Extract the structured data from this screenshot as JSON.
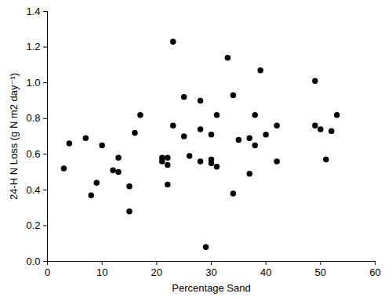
{
  "chart_data": {
    "type": "scatter",
    "xlabel": "Percentage Sand",
    "ylabel": "24-H N Loss (g N m2 day⁻¹)",
    "color": "#000000",
    "marker": "circle",
    "x": [
      3,
      4,
      7,
      8,
      9,
      10,
      12,
      13,
      13,
      15,
      15,
      16,
      17,
      21,
      21,
      22,
      22,
      22,
      23,
      23,
      25,
      25,
      26,
      28,
      28,
      28,
      29,
      30,
      30,
      30,
      31,
      31,
      33,
      34,
      34,
      35,
      37,
      37,
      38,
      38,
      39,
      40,
      42,
      42,
      49,
      49,
      50,
      51,
      52,
      53
    ],
    "values": [
      0.52,
      0.66,
      0.69,
      0.37,
      0.44,
      0.65,
      0.51,
      0.58,
      0.5,
      0.42,
      0.28,
      0.72,
      0.82,
      0.58,
      0.56,
      0.58,
      0.54,
      0.43,
      1.23,
      0.76,
      0.92,
      0.7,
      0.59,
      0.9,
      0.74,
      0.56,
      0.08,
      0.57,
      0.71,
      0.55,
      0.82,
      0.53,
      1.14,
      0.93,
      0.38,
      0.68,
      0.49,
      0.69,
      0.82,
      0.65,
      1.07,
      0.71,
      0.76,
      0.56,
      1.01,
      0.76,
      0.74,
      0.57,
      0.73,
      0.82
    ],
    "xlim": [
      0,
      60
    ],
    "xticks": [
      0,
      10,
      20,
      30,
      40,
      50,
      60
    ],
    "ylim": [
      0,
      1.4
    ],
    "yticks": [
      {
        "value": 0,
        "label": "0.0"
      },
      {
        "value": 0.2,
        "label": "0.2"
      },
      {
        "value": 0.4,
        "label": "0.4"
      },
      {
        "value": 0.6,
        "label": "0.6"
      },
      {
        "value": 0.8,
        "label": "0.8"
      },
      {
        "value": 1.0,
        "label": "1.0"
      },
      {
        "value": 1.2,
        "label": "1.2"
      },
      {
        "value": 1.4,
        "label": "1.4"
      }
    ],
    "grid": false
  }
}
